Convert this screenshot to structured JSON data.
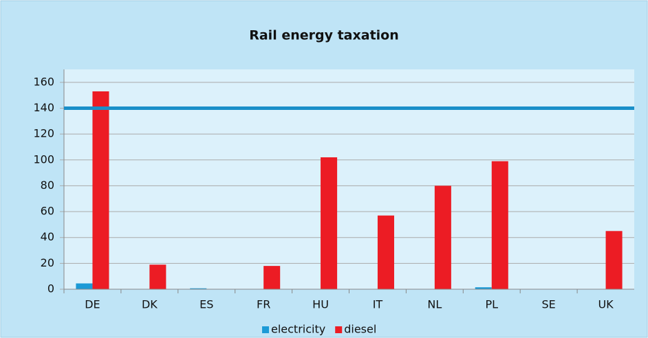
{
  "chart_data": {
    "type": "bar",
    "title": "Rail energy taxation",
    "categories": [
      "DE",
      "DK",
      "ES",
      "FR",
      "HU",
      "IT",
      "NL",
      "PL",
      "SE",
      "UK"
    ],
    "series": [
      {
        "name": "electricity",
        "color": "#1c9ad6",
        "values": [
          4.5,
          0,
          0.7,
          0,
          0,
          0,
          0,
          1.5,
          0,
          0
        ]
      },
      {
        "name": "diesel",
        "color": "#ec1c24",
        "values": [
          153,
          19,
          0,
          18,
          102,
          57,
          80,
          99,
          0,
          45
        ]
      }
    ],
    "reference_line": {
      "value": 140,
      "color": "#1a8fc9"
    },
    "ylim": [
      0,
      170
    ],
    "yticks": [
      0,
      20,
      40,
      60,
      80,
      100,
      120,
      140,
      160
    ],
    "grid": true,
    "legend": "bottom"
  }
}
